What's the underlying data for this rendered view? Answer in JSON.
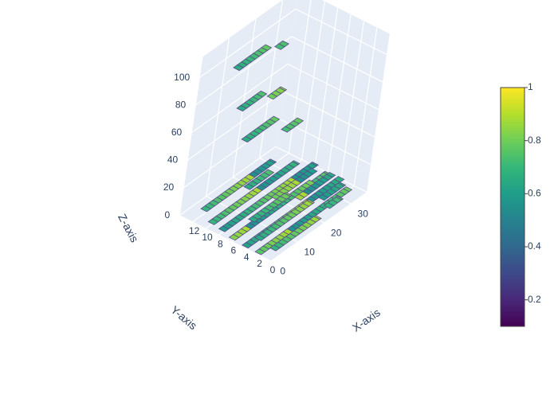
{
  "colors": {
    "scene_background": "#E5ECF6",
    "grid": "#ffffff",
    "text": "#2a3f5f",
    "colorscale": [
      "#440154",
      "#482878",
      "#3e4989",
      "#31688e",
      "#26828e",
      "#1f9e89",
      "#35b779",
      "#6ece58",
      "#b5de2b",
      "#fde725"
    ]
  },
  "chart_data": {
    "type": "surface",
    "colorscale": "Viridis",
    "x_axis": {
      "title": "X-axis",
      "ticks": [
        "0",
        "10",
        "20",
        "30"
      ],
      "range": [
        0,
        36
      ]
    },
    "y_axis": {
      "title": "Y-axis",
      "ticks": [
        "0",
        "2",
        "4",
        "6",
        "8",
        "10",
        "12"
      ],
      "range": [
        0,
        14
      ]
    },
    "z_axis": {
      "title": "Z-axis",
      "ticks": [
        "0",
        "20",
        "40",
        "60",
        "80",
        "100"
      ],
      "range": [
        0,
        115
      ]
    },
    "colorbar": {
      "ticks": [
        "0.2",
        "0.4",
        "0.6",
        "0.8",
        "1"
      ],
      "range": [
        0.1,
        1.0
      ]
    },
    "rows": [
      {
        "y": 1,
        "segments": [
          [
            3,
            20,
            2
          ],
          [
            23,
            28,
            5
          ]
        ]
      },
      {
        "y": 2,
        "segments": [
          [
            0,
            34,
            1
          ]
        ]
      },
      {
        "y": 3,
        "segments": [
          [
            2,
            22,
            6
          ],
          [
            26,
            34,
            2
          ]
        ]
      },
      {
        "y": 4,
        "segments": [
          [
            0,
            36,
            1
          ]
        ]
      },
      {
        "y": 5,
        "segments": [
          [
            4,
            18,
            12
          ],
          [
            22,
            35,
            3
          ]
        ]
      },
      {
        "y": 6,
        "segments": [
          [
            0,
            30,
            2
          ],
          [
            31,
            36,
            0
          ]
        ]
      },
      {
        "y": 7,
        "segments": [
          [
            6,
            15,
            28
          ],
          [
            18,
            33,
            4
          ]
        ]
      },
      {
        "y": 8,
        "segments": [
          [
            1,
            36,
            2
          ]
        ]
      },
      {
        "y": 9,
        "segments": [
          [
            8,
            20,
            55
          ],
          [
            24,
            30,
            40
          ]
        ]
      },
      {
        "y": 10,
        "segments": [
          [
            2,
            34,
            1
          ]
        ]
      },
      {
        "y": 11,
        "segments": [
          [
            10,
            19,
            70
          ],
          [
            22,
            27,
            62
          ]
        ]
      },
      {
        "y": 12,
        "segments": [
          [
            4,
            30,
            3
          ]
        ]
      },
      {
        "y": 13,
        "segments": [
          [
            12,
            24,
            92
          ],
          [
            28,
            31,
            85
          ]
        ]
      }
    ]
  }
}
